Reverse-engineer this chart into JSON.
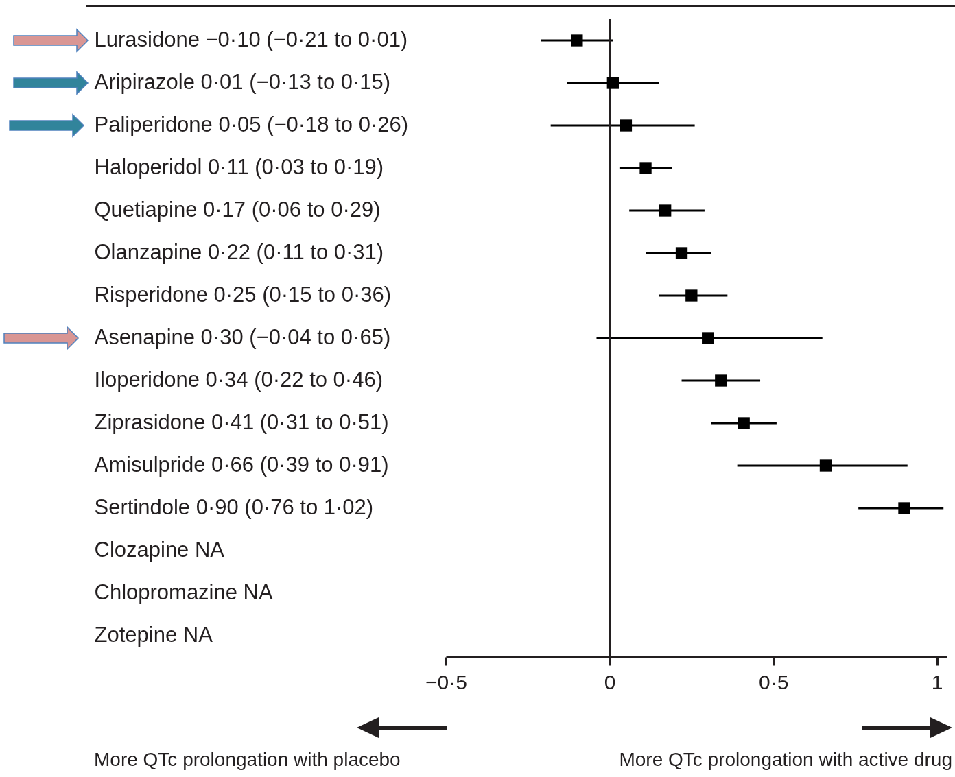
{
  "chart_data": {
    "type": "scatter",
    "orientation": "horizontal",
    "marker": "square",
    "grid": false,
    "categories": [
      "Lurasidone −0·10 (−0·21 to 0·01)",
      "Aripirazole 0·01 (−0·13 to 0·15)",
      "Paliperidone 0·05 (−0·18 to 0·26)",
      "Haloperidol 0·11 (0·03 to 0·19)",
      "Quetiapine 0·17 (0·06 to 0·29)",
      "Olanzapine 0·22 (0·11 to 0·31)",
      "Risperidone 0·25 (0·15 to 0·36)",
      "Asenapine 0·30 (−0·04 to 0·65)",
      "Iloperidone 0·34 (0·22 to 0·46)",
      "Ziprasidone 0·41 (0·31 to 0·51)",
      "Amisulpride 0·66 (0·39 to 0·91)",
      "Sertindole 0·90 (0·76 to 1·02)",
      "Clozapine NA",
      "Chlopromazine NA",
      "Zotepine NA"
    ],
    "color": "#000000",
    "values": [
      -0.1,
      0.01,
      0.05,
      0.11,
      0.17,
      0.22,
      0.25,
      0.3,
      0.34,
      0.41,
      0.66,
      0.9,
      null,
      null,
      null
    ],
    "errors": [
      [
        -0.21,
        0.01
      ],
      [
        -0.13,
        0.15
      ],
      [
        -0.18,
        0.26
      ],
      [
        0.03,
        0.19
      ],
      [
        0.06,
        0.29
      ],
      [
        0.11,
        0.31
      ],
      [
        0.15,
        0.36
      ],
      [
        -0.04,
        0.65
      ],
      [
        0.22,
        0.46
      ],
      [
        0.31,
        0.51
      ],
      [
        0.39,
        0.91
      ],
      [
        0.76,
        1.02
      ],
      null,
      null,
      null
    ],
    "xlim": [
      -0.5,
      1.03
    ],
    "xticks": [
      {
        "value": -0.5,
        "label": "−0·5"
      },
      0,
      {
        "value": 0.5,
        "label": "0·5"
      },
      1
    ],
    "ref_lines": [
      {
        "axis": "x",
        "value": 0,
        "color": "#231f20"
      }
    ],
    "annotations": [
      "More QTc prolongation with placebo",
      "More QTc prolongation with active drug"
    ]
  }
}
